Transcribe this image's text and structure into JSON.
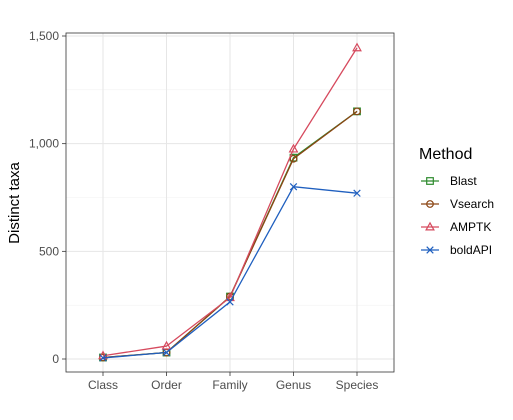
{
  "chart_data": {
    "type": "line",
    "title": "",
    "xlabel": "",
    "ylabel": "Distinct taxa",
    "categories": [
      "Class",
      "Order",
      "Family",
      "Genus",
      "Species"
    ],
    "ylim": [
      -50,
      1500
    ],
    "yticks": [
      0,
      500,
      1000,
      1500
    ],
    "ytick_labels": [
      "0",
      "500",
      "1,000",
      "1,500"
    ],
    "grid": true,
    "legend": {
      "title": "Method",
      "position": "right"
    },
    "series": [
      {
        "name": "Blast",
        "color": "#2e8b2e",
        "marker": "square",
        "values": [
          7,
          30,
          290,
          935,
          1150
        ]
      },
      {
        "name": "Vsearch",
        "color": "#8b4513",
        "marker": "circle",
        "values": [
          7,
          30,
          290,
          930,
          1150
        ]
      },
      {
        "name": "AMPTK",
        "color": "#d64a5e",
        "marker": "triangle",
        "values": [
          15,
          60,
          285,
          975,
          1445
        ]
      },
      {
        "name": "boldAPI",
        "color": "#1f5fbf",
        "marker": "x",
        "values": [
          5,
          30,
          265,
          800,
          770
        ]
      }
    ]
  }
}
